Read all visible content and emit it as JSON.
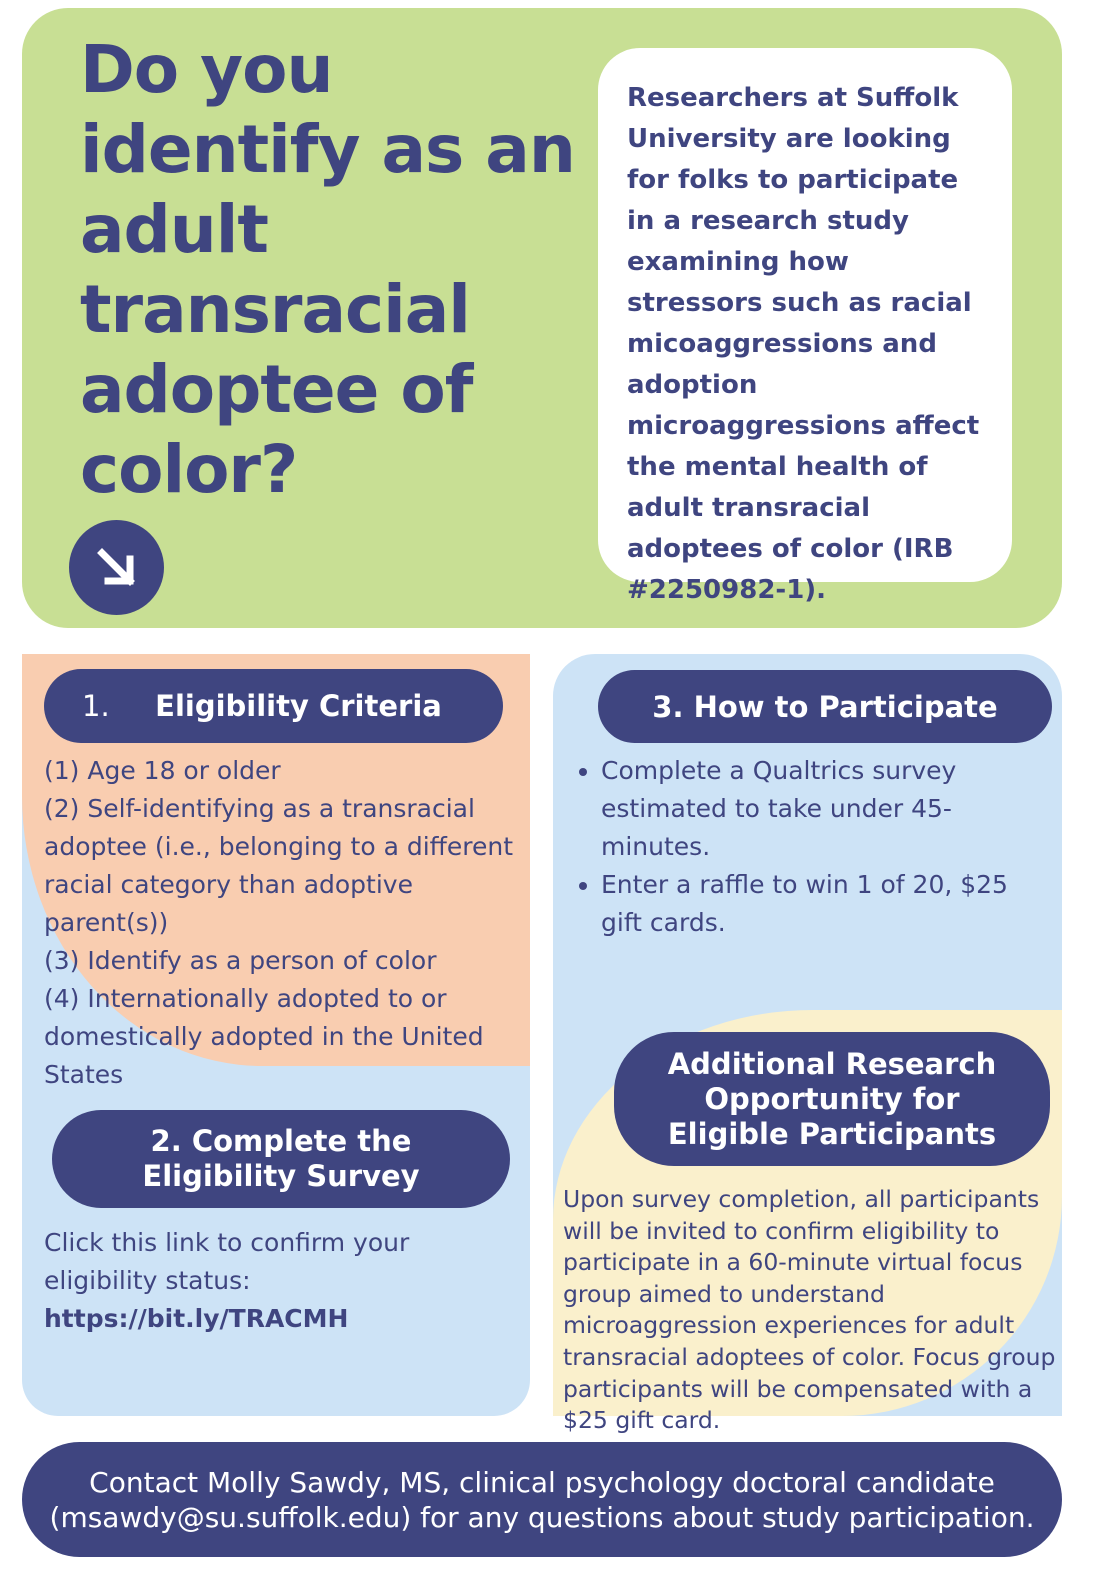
{
  "hero": {
    "headline": "Do you identify as an adult transracial adoptee of color?",
    "arrow_icon": "arrow-down-right-icon",
    "intro": "Researchers at Suffolk University are looking for folks to participate in a research study examining how stressors such as racial micoaggressions and adoption microaggressions affect the mental health of adult transracial adoptees of color (IRB #2250982-1)."
  },
  "eligibility": {
    "number": "1.",
    "title": "Eligibility Criteria",
    "items": [
      "(1) Age 18 or older",
      "(2) Self-identifying as a transracial adoptee (i.e., belonging to a different racial category than adoptive parent(s))",
      "(3) Identify as a person of color",
      "(4) Internationally adopted to or domestically adopted in the United States"
    ]
  },
  "survey": {
    "title": "2. Complete the Eligibility Survey",
    "text": "Click this link to confirm your eligibility status:",
    "link": "https://bit.ly/TRACMH"
  },
  "participate": {
    "title": "3. How to Participate",
    "bullets": [
      "Complete a Qualtrics survey estimated to take under 45-minutes.",
      "Enter a raffle to win 1 of 20, $25 gift cards."
    ]
  },
  "additional": {
    "title": "Additional Research Opportunity for Eligible Participants",
    "text": "Upon survey completion, all participants will be invited to confirm eligibility to participate in a 60-minute virtual focus group aimed to understand microaggression experiences for adult transracial adoptees of color. Focus group participants will be compensated with a $25 gift card."
  },
  "footer": {
    "line1": "Contact Molly Sawdy, MS, clinical psychology doctoral candidate",
    "line2": "(msawdy@su.suffolk.edu) for any questions about study participation."
  },
  "colors": {
    "navy": "#3f4580",
    "green": "#c8df94",
    "peach": "#f9cdb0",
    "blue": "#cde3f6",
    "cream": "#faf0cc"
  }
}
